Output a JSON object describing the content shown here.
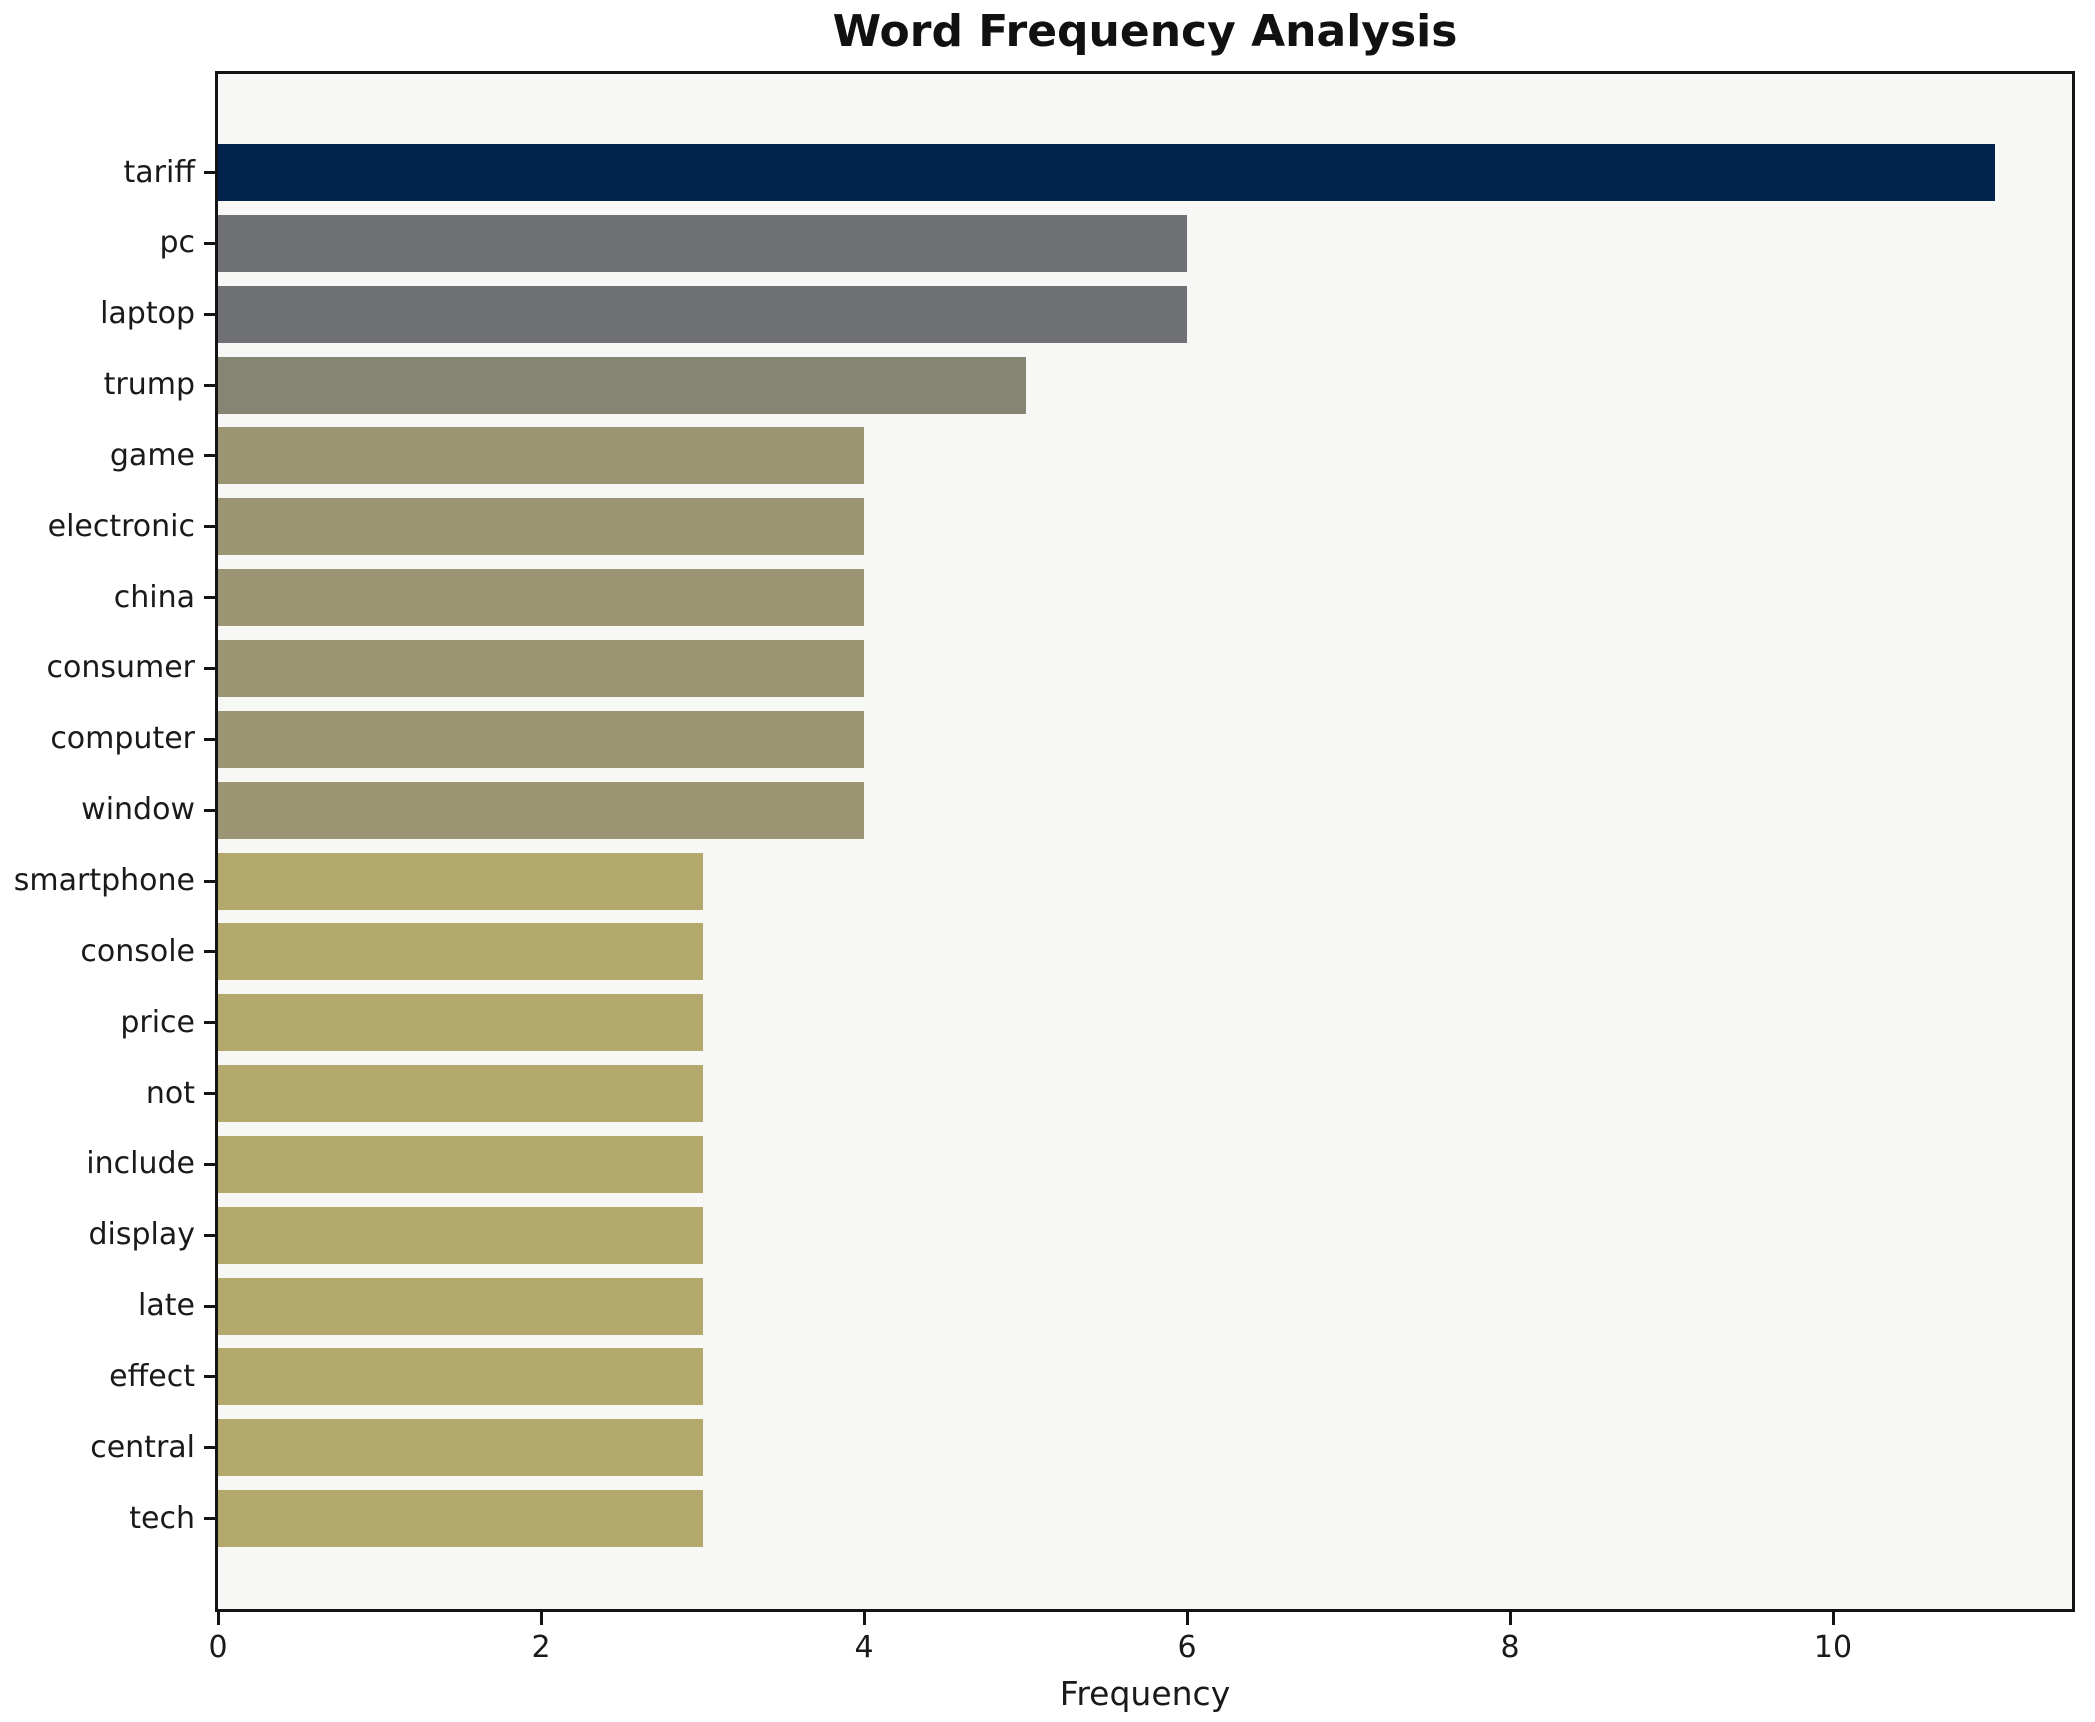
{
  "chart_data": {
    "type": "bar",
    "orientation": "horizontal",
    "title": "Word Frequency Analysis",
    "xlabel": "Frequency",
    "ylabel": "",
    "categories": [
      "tariff",
      "pc",
      "laptop",
      "trump",
      "game",
      "electronic",
      "china",
      "consumer",
      "computer",
      "window",
      "smartphone",
      "console",
      "price",
      "not",
      "include",
      "display",
      "late",
      "effect",
      "central",
      "tech"
    ],
    "values": [
      11,
      6,
      6,
      5,
      4,
      4,
      4,
      4,
      4,
      4,
      3,
      3,
      3,
      3,
      3,
      3,
      3,
      3,
      3,
      3
    ],
    "bar_colors": [
      "#02234e",
      "#707174",
      "#707174",
      "#868472",
      "#9c9573",
      "#9c9573",
      "#9c9573",
      "#9c9573",
      "#9c9573",
      "#9c9573",
      "#b4a96c",
      "#b4a96c",
      "#b4a96c",
      "#b4a96c",
      "#b4a96c",
      "#b4a96c",
      "#b4a96c",
      "#b4a96c",
      "#b4a96c",
      "#b4a96c"
    ],
    "xticks": [
      "0",
      "2",
      "4",
      "6",
      "8",
      "10"
    ],
    "xtick_values": [
      0,
      2,
      4,
      6,
      8,
      10
    ],
    "xlim": [
      0,
      11.5
    ],
    "grid": false,
    "legend_position": "none",
    "colors": {
      "figure_bg": "#ffffff",
      "plot_bg": "#f7f7f6",
      "spine": "#141414",
      "text": "#1a1a1a"
    }
  }
}
